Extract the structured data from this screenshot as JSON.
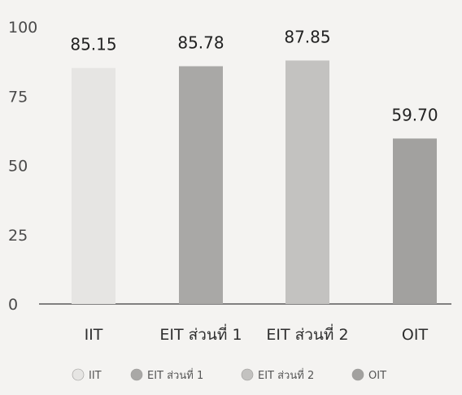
{
  "chart_data": {
    "type": "bar",
    "categories": [
      "IIT",
      "EIT ส่วนที่ 1",
      "EIT ส่วนที่ 2",
      "OIT"
    ],
    "values": [
      85.15,
      85.78,
      87.85,
      59.7
    ],
    "value_labels": [
      "85.15",
      "85.78",
      "87.85",
      "59.70"
    ],
    "title": "",
    "xlabel": "",
    "ylabel": "",
    "ylim": [
      0,
      100
    ],
    "yticks": [
      0,
      25,
      50,
      75,
      100
    ],
    "grid": false,
    "legend": {
      "placement": "bottom",
      "entries": [
        "IIT",
        "EIT ส่วนที่ 1",
        "EIT ส่วนที่ 2",
        "OIT"
      ]
    },
    "colors": [
      "#e6e5e3",
      "#a9a8a6",
      "#c3c2c0",
      "#a2a19f"
    ]
  }
}
